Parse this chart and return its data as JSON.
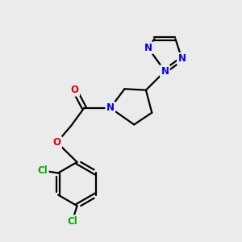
{
  "bg_color": "#ebebeb",
  "bond_color": "#000000",
  "atom_colors": {
    "N": "#0000ee",
    "O": "#dd0000",
    "Cl": "#00aa00",
    "C": "#000000"
  },
  "bond_width": 1.6,
  "dbl_sep": 0.1,
  "font_size_atom": 8.5
}
